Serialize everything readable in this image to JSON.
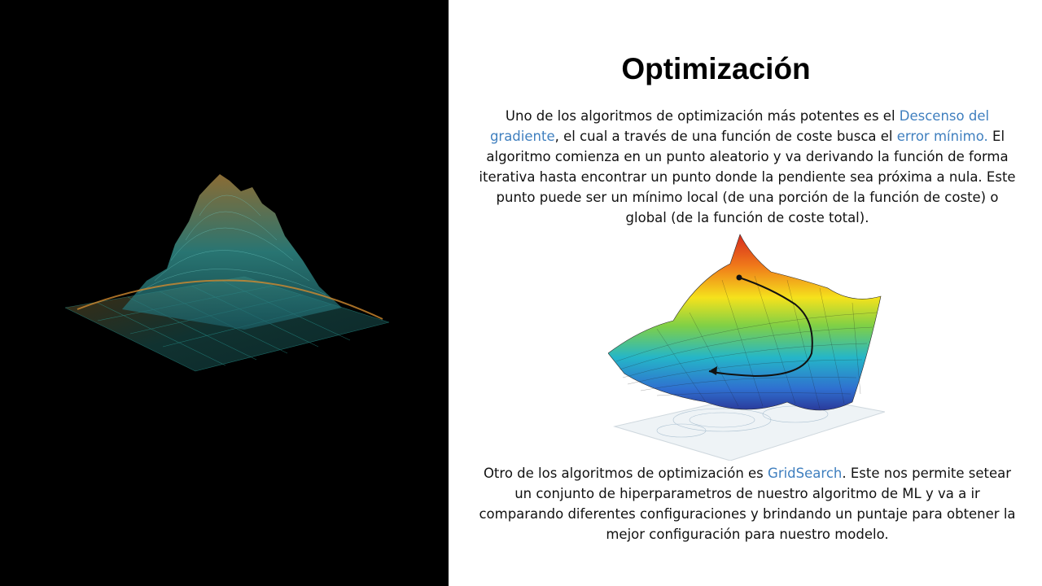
{
  "slide": {
    "title": "Optimización",
    "paragraph1": {
      "t1": "Uno de los algoritmos de optimización más potentes es el ",
      "link1": "Descenso del gradiente",
      "t2": ", el cual a través de una función de coste busca el ",
      "link2": "error mínimo.",
      "t3": " El algoritmo comienza en un punto aleatorio y va derivando la función de forma iterativa hasta encontrar un punto donde la pendiente sea próxima a nula. Este punto puede ser un mínimo local (de una porción de la función de coste) o global (de la función de coste total)."
    },
    "paragraph2": {
      "t1": "Otro de los algoritmos de optimización es ",
      "link1": "GridSearch",
      "t2": ". Este nos permite setear un conjunto de hiperparametros de nuestro algoritmo de ML y va a ir comparando diferentes configuraciones y brindando un puntaje para obtener la mejor configuración para nuestro modelo."
    }
  },
  "colors": {
    "left_background": "#000000",
    "link": "#3f7fbf",
    "wireframe_teal": "#2aa6a0",
    "wireframe_orange": "#d08a30"
  },
  "images": {
    "left": "3D wireframe mountain terrain (teal and orange)",
    "right": "3D gradient descent loss surface with contour plot"
  }
}
